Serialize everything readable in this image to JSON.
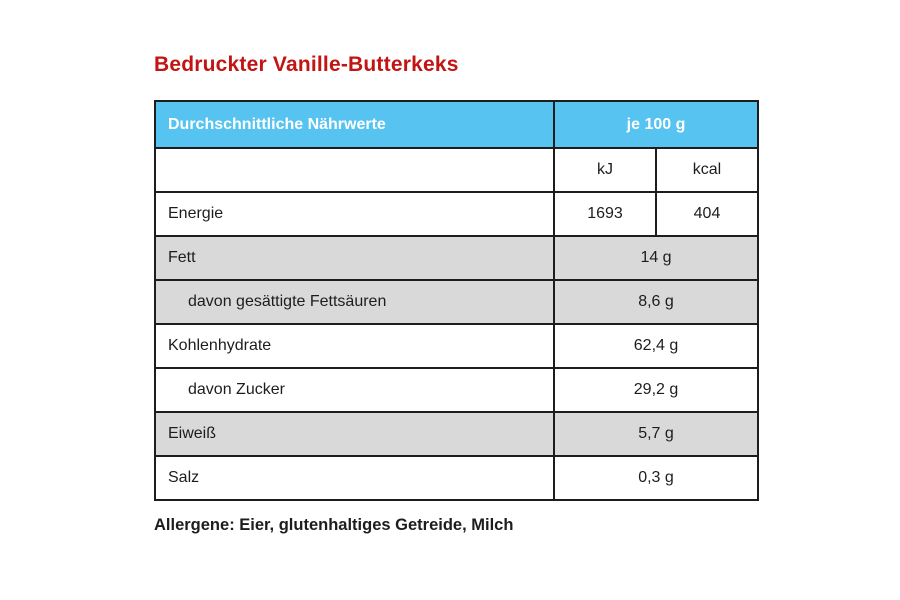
{
  "page": {
    "title": "Bedruckter Vanille-Butterkeks",
    "allergens_note": "Allergene: Eier, glutenhaltiges Getreide, Milch"
  },
  "table": {
    "header": {
      "label_col": "Durchschnittliche Nährwerte",
      "value_col": "je 100 g"
    },
    "units": {
      "kj": "kJ",
      "kcal": "kcal"
    },
    "energy": {
      "label": "Energie",
      "kj": "1693",
      "kcal": "404"
    },
    "rows": [
      {
        "label": "Fett",
        "value": "14 g",
        "shaded": true,
        "indent": false
      },
      {
        "label": "davon gesättigte Fettsäuren",
        "value": "8,6 g",
        "shaded": true,
        "indent": true
      },
      {
        "label": "Kohlenhydrate",
        "value": "62,4 g",
        "shaded": false,
        "indent": false
      },
      {
        "label": "davon Zucker",
        "value": "29,2 g",
        "shaded": false,
        "indent": true
      },
      {
        "label": "Eiweiß",
        "value": "5,7 g",
        "shaded": true,
        "indent": false
      },
      {
        "label": "Salz",
        "value": "0,3 g",
        "shaded": false,
        "indent": false
      }
    ]
  },
  "colors": {
    "accent_red": "#c11413",
    "header_blue": "#57c3f0",
    "row_gray": "#d9d9d9",
    "border": "#1d1d1b"
  }
}
